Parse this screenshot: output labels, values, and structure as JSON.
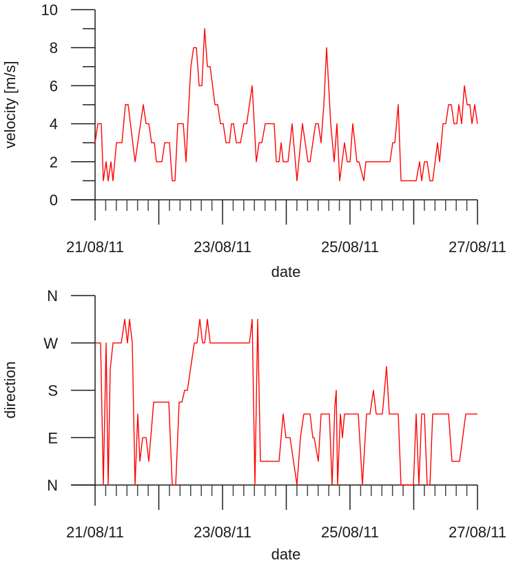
{
  "chart_data": [
    {
      "id": "velocity",
      "type": "line",
      "title": "",
      "xlabel": "date",
      "ylabel": "velocity [m/s]",
      "ylim": [
        0,
        10
      ],
      "yticks_major": [
        0,
        2,
        4,
        6,
        8,
        10
      ],
      "yticks_minor": [
        1,
        3,
        5,
        7,
        9
      ],
      "ytick_labels": [
        "0",
        "2",
        "4",
        "6",
        "8",
        "10"
      ],
      "xlim_days": [
        0,
        6
      ],
      "xtick_labels": [
        "21/08/11",
        "23/08/11",
        "25/08/11",
        "27/08/11"
      ],
      "xtick_label_days": [
        0,
        2,
        4,
        6
      ],
      "xticks_major_days": [
        0,
        1,
        2,
        3,
        4,
        5,
        6
      ],
      "xticks_minor_per_day": 6,
      "grid": false,
      "legend": null,
      "line_color": "#ff0000",
      "series": [
        {
          "name": "velocity",
          "x_days": [
            0.0,
            0.043,
            0.097,
            0.13,
            0.173,
            0.205,
            0.249,
            0.281,
            0.335,
            0.422,
            0.476,
            0.519,
            0.627,
            0.757,
            0.8,
            0.843,
            0.886,
            0.93,
            0.962,
            1.049,
            1.092,
            1.168,
            1.211,
            1.254,
            1.297,
            1.384,
            1.427,
            1.47,
            1.503,
            1.546,
            1.589,
            1.632,
            1.676,
            1.719,
            1.762,
            1.805,
            1.881,
            1.924,
            1.968,
            2.011,
            2.054,
            2.108,
            2.141,
            2.173,
            2.216,
            2.281,
            2.335,
            2.378,
            2.465,
            2.53,
            2.573,
            2.616,
            2.67,
            2.811,
            2.843,
            2.886,
            2.919,
            2.951,
            3.027,
            3.092,
            3.168,
            3.254,
            3.341,
            3.373,
            3.459,
            3.503,
            3.546,
            3.589,
            3.632,
            3.697,
            3.751,
            3.795,
            3.838,
            3.914,
            3.957,
            4.0,
            4.043,
            4.108,
            4.141,
            4.216,
            4.249,
            4.627,
            4.67,
            4.703,
            4.757,
            4.8,
            5.038,
            5.092,
            5.124,
            5.168,
            5.211,
            5.254,
            5.297,
            5.373,
            5.405,
            5.459,
            5.503,
            5.546,
            5.589,
            5.632,
            5.676,
            5.708,
            5.751,
            5.795,
            5.838,
            5.881,
            5.914,
            5.957,
            6.0
          ],
          "values": [
            3,
            4,
            4,
            1,
            2,
            1,
            2,
            1,
            3,
            3,
            5,
            5,
            2,
            5,
            4,
            4,
            3,
            3,
            2,
            2,
            3,
            3,
            1,
            1,
            4,
            4,
            2,
            5,
            7,
            8,
            8,
            6,
            6,
            9,
            7,
            7,
            5,
            5,
            4,
            4,
            3,
            3,
            4,
            4,
            3,
            3,
            4,
            4,
            6,
            2,
            3,
            3,
            4,
            4,
            2,
            2,
            3,
            2,
            2,
            4,
            1,
            4,
            2,
            2,
            4,
            4,
            3,
            5,
            8,
            4,
            2,
            4,
            1,
            3,
            2,
            2,
            4,
            2,
            2,
            1,
            2,
            2,
            3,
            3,
            5,
            1,
            1,
            2,
            1,
            2,
            2,
            1,
            1,
            3,
            2,
            4,
            4,
            5,
            5,
            4,
            4,
            5,
            4,
            6,
            5,
            5,
            4,
            5,
            4
          ]
        }
      ]
    },
    {
      "id": "direction",
      "type": "line",
      "title": "",
      "xlabel": "date",
      "ylabel": "direction",
      "ylim": [
        0,
        360
      ],
      "yticks_major": [
        0,
        90,
        180,
        270,
        360
      ],
      "ytick_labels": [
        "N",
        "E",
        "S",
        "W",
        "N"
      ],
      "xlim_days": [
        0,
        6
      ],
      "xtick_labels": [
        "21/08/11",
        "23/08/11",
        "25/08/11",
        "27/08/11"
      ],
      "xtick_label_days": [
        0,
        2,
        4,
        6
      ],
      "xticks_major_days": [
        0,
        1,
        2,
        3,
        4,
        5,
        6
      ],
      "xticks_minor_per_day": 6,
      "grid": false,
      "legend": null,
      "line_color": "#ff0000",
      "series": [
        {
          "name": "direction",
          "x_days": [
            0.0,
            0.086,
            0.13,
            0.173,
            0.205,
            0.238,
            0.281,
            0.411,
            0.465,
            0.508,
            0.541,
            0.584,
            0.627,
            0.67,
            0.703,
            0.746,
            0.8,
            0.843,
            0.919,
            1.157,
            1.211,
            1.265,
            1.319,
            1.362,
            1.405,
            1.449,
            1.557,
            1.6,
            1.643,
            1.686,
            1.719,
            1.762,
            1.805,
            2.422,
            2.465,
            2.508,
            2.551,
            2.595,
            2.886,
            2.951,
            2.995,
            3.059,
            3.168,
            3.222,
            3.276,
            3.373,
            3.416,
            3.438,
            3.503,
            3.546,
            3.676,
            3.719,
            3.762,
            3.784,
            3.805,
            3.849,
            3.881,
            3.914,
            4.13,
            4.195,
            4.259,
            4.314,
            4.368,
            4.411,
            4.508,
            4.573,
            4.616,
            4.757,
            4.8,
            4.995,
            5.038,
            5.081,
            5.124,
            5.168,
            5.211,
            5.254,
            5.297,
            5.546,
            5.6,
            5.719,
            5.816,
            6.0
          ],
          "values_deg": [
            270,
            270,
            0,
            270,
            0,
            220,
            270,
            270,
            315,
            270,
            315,
            270,
            0,
            135,
            45,
            90,
            90,
            45,
            157.5,
            157.5,
            0,
            0,
            157.5,
            157.5,
            180,
            180,
            270,
            270,
            315,
            270,
            270,
            315,
            270,
            270,
            315,
            0,
            315,
            45,
            45,
            135,
            90,
            90,
            0,
            90,
            135,
            135,
            90,
            90,
            45,
            135,
            135,
            0,
            150,
            180,
            0,
            135,
            90,
            135,
            135,
            0,
            135,
            135,
            180,
            135,
            135,
            225,
            135,
            135,
            0,
            0,
            135,
            0,
            135,
            135,
            0,
            0,
            135,
            135,
            45,
            45,
            135,
            135
          ]
        }
      ]
    }
  ],
  "plots": {
    "velocity": {
      "ylabel": "velocity [m/s]",
      "xlabel": "date"
    },
    "direction": {
      "ylabel": "direction",
      "xlabel": "date"
    }
  }
}
